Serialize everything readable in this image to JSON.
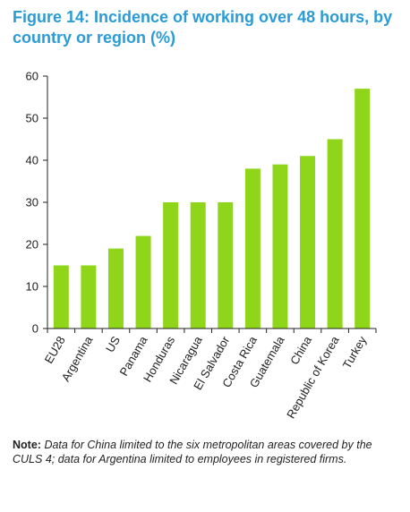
{
  "figure": {
    "title": "Figure 14: Incidence of working over 48 hours, by country or region (%)"
  },
  "note": {
    "label": "Note:",
    "text": "Data for China limited to the six metropolitan areas covered by the CULS 4; data for Argentina limited to employees in registered firms."
  },
  "colors": {
    "bar": "#8fd61b",
    "title": "#2b9bd6",
    "axis": "#222222"
  },
  "chart_data": {
    "type": "bar",
    "title": "",
    "xlabel": "",
    "ylabel": "",
    "ylim": [
      0,
      60
    ],
    "yticks": [
      0,
      10,
      20,
      30,
      40,
      50,
      60
    ],
    "grid": false,
    "categories": [
      "EU28",
      "Argentina",
      "US",
      "Panama",
      "Honduras",
      "Nicaragua",
      "El Salvador",
      "Costa Rica",
      "Guatemala",
      "China",
      "Republic of Korea",
      "Turkey"
    ],
    "values": [
      15,
      15,
      19,
      22,
      30,
      30,
      30,
      38,
      39,
      41,
      45,
      57
    ]
  }
}
